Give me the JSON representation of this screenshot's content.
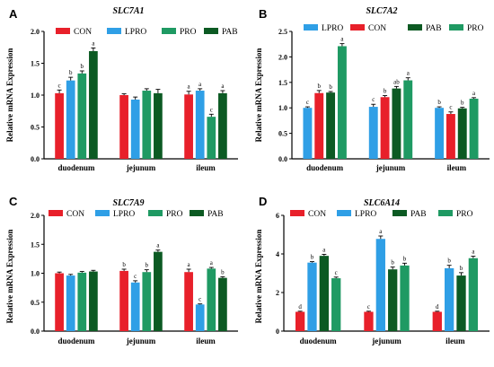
{
  "chart_data": [
    {
      "type": "bar",
      "panel": "A",
      "title": "SLC7A1",
      "ylabel": "Relative mRNA Expression",
      "ylim": [
        0,
        2.0
      ],
      "yticks": [
        "0.0",
        "0.5",
        "1.0",
        "1.5",
        "2.0"
      ],
      "categories": [
        "duodenum",
        "jejunum",
        "ileum"
      ],
      "legend_position": "top",
      "series": [
        {
          "name": "CON",
          "color": "#e8202a",
          "values": [
            1.03,
            1.0,
            1.01
          ],
          "errors": [
            0.05,
            0.02,
            0.05
          ],
          "labels": [
            "c",
            "",
            "a"
          ]
        },
        {
          "name": "LPRO",
          "color": "#2f9fe6",
          "values": [
            1.23,
            0.93,
            1.07
          ],
          "errors": [
            0.05,
            0.04,
            0.03
          ],
          "labels": [
            "b",
            "",
            "a"
          ]
        },
        {
          "name": "PRO",
          "color": "#1f9a63",
          "values": [
            1.34,
            1.07,
            0.66
          ],
          "errors": [
            0.04,
            0.03,
            0.04
          ],
          "labels": [
            "b",
            "",
            "c"
          ]
        },
        {
          "name": "PAB",
          "color": "#0c5a23",
          "values": [
            1.69,
            1.03,
            1.03
          ],
          "errors": [
            0.05,
            0.06,
            0.04
          ],
          "labels": [
            "a",
            "",
            "a"
          ]
        }
      ]
    },
    {
      "type": "bar",
      "panel": "B",
      "title": "SLC7A2",
      "ylabel": "Relative mRNA Expression",
      "ylim": [
        0,
        2.5
      ],
      "yticks": [
        "0.0",
        "0.5",
        "1.0",
        "1.5",
        "2.0",
        "2.5"
      ],
      "categories": [
        "duodenum",
        "jejunum",
        "ileum"
      ],
      "legend_position": "top",
      "series": [
        {
          "name": "LPRO",
          "color": "#2f9fe6",
          "values": [
            1.0,
            1.02,
            1.0
          ],
          "errors": [
            0.02,
            0.05,
            0.02
          ],
          "labels": [
            "c",
            "c",
            "b"
          ]
        },
        {
          "name": "CON",
          "color": "#e8202a",
          "values": [
            1.29,
            1.21,
            0.88
          ],
          "errors": [
            0.05,
            0.03,
            0.04
          ],
          "labels": [
            "b",
            "b",
            "c"
          ]
        },
        {
          "name": "PAB",
          "color": "#0c5a23",
          "values": [
            1.3,
            1.38,
            0.99
          ],
          "errors": [
            0.02,
            0.04,
            0.02
          ],
          "labels": [
            "b",
            "ab",
            "b"
          ]
        },
        {
          "name": "PRO",
          "color": "#1f9a63",
          "values": [
            2.21,
            1.54,
            1.18
          ],
          "errors": [
            0.05,
            0.05,
            0.02
          ],
          "labels": [
            "a",
            "a",
            "a"
          ]
        }
      ]
    },
    {
      "type": "bar",
      "panel": "C",
      "title": "SLC7A9",
      "ylabel": "Relative mRNA Expression",
      "ylim": [
        0,
        2.0
      ],
      "yticks": [
        "0.0",
        "0.5",
        "1.0",
        "1.5",
        "2.0"
      ],
      "categories": [
        "duodenum",
        "jejunum",
        "ileum"
      ],
      "legend_position": "top",
      "series": [
        {
          "name": "CON",
          "color": "#e8202a",
          "values": [
            1.0,
            1.04,
            1.02
          ],
          "errors": [
            0.02,
            0.03,
            0.05
          ],
          "labels": [
            "",
            "b",
            "a"
          ]
        },
        {
          "name": "LPRO",
          "color": "#2f9fe6",
          "values": [
            0.96,
            0.84,
            0.46
          ],
          "errors": [
            0.02,
            0.03,
            0.01
          ],
          "labels": [
            "",
            "c",
            "c"
          ]
        },
        {
          "name": "PRO",
          "color": "#1f9a63",
          "values": [
            1.01,
            1.02,
            1.08
          ],
          "errors": [
            0.02,
            0.04,
            0.02
          ],
          "labels": [
            "",
            "b",
            "a"
          ]
        },
        {
          "name": "PAB",
          "color": "#0c5a23",
          "values": [
            1.03,
            1.37,
            0.92
          ],
          "errors": [
            0.02,
            0.03,
            0.02
          ],
          "labels": [
            "",
            "a",
            "b"
          ]
        }
      ]
    },
    {
      "type": "bar",
      "panel": "D",
      "title": "SLC6A14",
      "ylabel": "Relative mRNA Expression",
      "ylim": [
        0,
        6
      ],
      "yticks": [
        "0",
        "2",
        "4",
        "6"
      ],
      "categories": [
        "duodenum",
        "jejunum",
        "ileum"
      ],
      "legend_position": "top",
      "series": [
        {
          "name": "CON",
          "color": "#e8202a",
          "values": [
            1.0,
            1.0,
            1.0
          ],
          "errors": [
            0.03,
            0.03,
            0.03
          ],
          "labels": [
            "d",
            "c",
            "d"
          ]
        },
        {
          "name": "LPRO",
          "color": "#2f9fe6",
          "values": [
            3.55,
            4.78,
            3.26
          ],
          "errors": [
            0.05,
            0.15,
            0.15
          ],
          "labels": [
            "b",
            "a",
            "b"
          ]
        },
        {
          "name": "PAB",
          "color": "#0c5a23",
          "values": [
            3.9,
            3.2,
            2.88
          ],
          "errors": [
            0.08,
            0.12,
            0.15
          ],
          "labels": [
            "a",
            "b",
            "b"
          ]
        },
        {
          "name": "PRO",
          "color": "#1f9a63",
          "values": [
            2.74,
            3.4,
            3.78
          ],
          "errors": [
            0.06,
            0.12,
            0.1
          ],
          "labels": [
            "c",
            "b",
            "a"
          ]
        }
      ]
    }
  ]
}
